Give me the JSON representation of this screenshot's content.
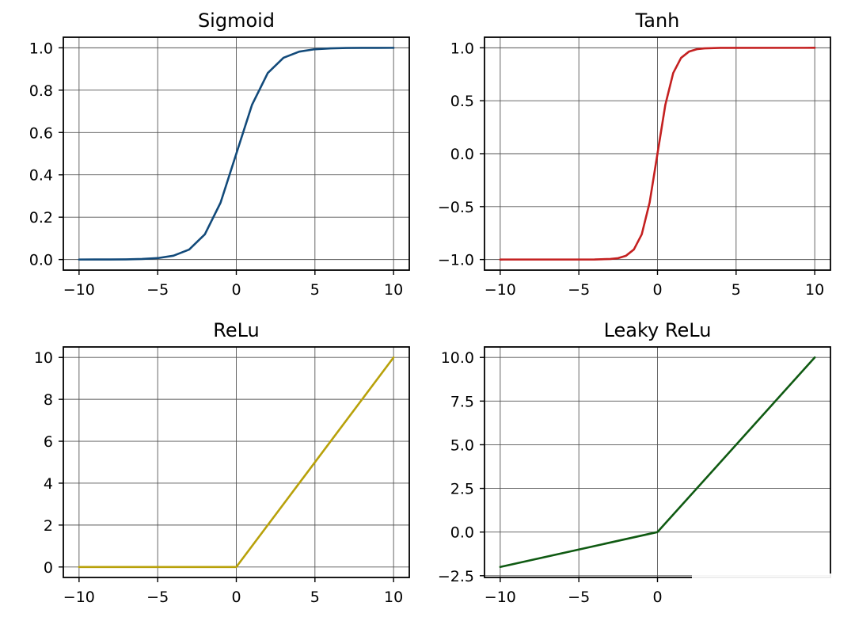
{
  "chart_data": [
    {
      "type": "line",
      "title": "Sigmoid",
      "xlabel": "",
      "ylabel": "",
      "xlim": [
        -11,
        11
      ],
      "ylim": [
        -0.05,
        1.05
      ],
      "xticks": [
        -10,
        -5,
        0,
        5,
        10
      ],
      "xtick_labels": [
        "−10",
        "−5",
        "0",
        "5",
        "10"
      ],
      "yticks": [
        0.0,
        0.2,
        0.4,
        0.6,
        0.8,
        1.0
      ],
      "ytick_labels": [
        "0.0",
        "0.2",
        "0.4",
        "0.6",
        "0.8",
        "1.0"
      ],
      "grid": true,
      "series": [
        {
          "color": "#124a7a",
          "x": [
            -10,
            -9,
            -8,
            -7,
            -6,
            -5,
            -4,
            -3,
            -2,
            -1,
            0,
            1,
            2,
            3,
            4,
            5,
            6,
            7,
            8,
            9,
            10
          ],
          "y": [
            5e-05,
            0.0001,
            0.0003,
            0.0009,
            0.0025,
            0.0067,
            0.018,
            0.047,
            0.119,
            0.269,
            0.5,
            0.731,
            0.881,
            0.953,
            0.982,
            0.9933,
            0.9975,
            0.9991,
            0.9997,
            0.9999,
            0.99995
          ]
        }
      ]
    },
    {
      "type": "line",
      "title": "Tanh",
      "xlabel": "",
      "ylabel": "",
      "xlim": [
        -11,
        11
      ],
      "ylim": [
        -1.1,
        1.1
      ],
      "xticks": [
        -10,
        -5,
        0,
        5,
        10
      ],
      "xtick_labels": [
        "−10",
        "−5",
        "0",
        "5",
        "10"
      ],
      "yticks": [
        -1.0,
        -0.5,
        0.0,
        0.5,
        1.0
      ],
      "ytick_labels": [
        "−1.0",
        "−0.5",
        "0.0",
        "0.5",
        "1.0"
      ],
      "grid": true,
      "series": [
        {
          "color": "#c42020",
          "x": [
            -10,
            -4,
            -3,
            -2.5,
            -2,
            -1.5,
            -1,
            -0.5,
            0,
            0.5,
            1,
            1.5,
            2,
            2.5,
            3,
            4,
            10
          ],
          "y": [
            -1,
            -0.9993,
            -0.995,
            -0.987,
            -0.964,
            -0.905,
            -0.762,
            -0.462,
            0,
            0.462,
            0.762,
            0.905,
            0.964,
            0.987,
            0.995,
            0.9993,
            1
          ]
        }
      ]
    },
    {
      "type": "line",
      "title": "ReLu",
      "xlabel": "",
      "ylabel": "",
      "xlim": [
        -11,
        11
      ],
      "ylim": [
        -0.5,
        10.5
      ],
      "xticks": [
        -10,
        -5,
        0,
        5,
        10
      ],
      "xtick_labels": [
        "−10",
        "−5",
        "0",
        "5",
        "10"
      ],
      "yticks": [
        0,
        2,
        4,
        6,
        8,
        10
      ],
      "ytick_labels": [
        "0",
        "2",
        "4",
        "6",
        "8",
        "10"
      ],
      "grid": true,
      "series": [
        {
          "color": "#b8a10a",
          "x": [
            -10,
            0,
            10
          ],
          "y": [
            0,
            0,
            10
          ]
        }
      ]
    },
    {
      "type": "line",
      "title": "Leaky ReLu",
      "xlabel": "",
      "ylabel": "",
      "xlim": [
        -11,
        11
      ],
      "ylim": [
        -2.6,
        10.6
      ],
      "xticks": [
        -10,
        -5,
        0
      ],
      "xtick_labels": [
        "−10",
        "−5",
        "0"
      ],
      "yticks": [
        -2.5,
        0.0,
        2.5,
        5.0,
        7.5,
        10.0
      ],
      "ytick_labels": [
        "−2.5",
        "0.0",
        "2.5",
        "5.0",
        "7.5",
        "10.0"
      ],
      "grid": true,
      "series": [
        {
          "color": "#0f5a12",
          "x": [
            -10,
            0,
            10
          ],
          "y": [
            -2,
            0,
            10
          ]
        }
      ]
    }
  ]
}
